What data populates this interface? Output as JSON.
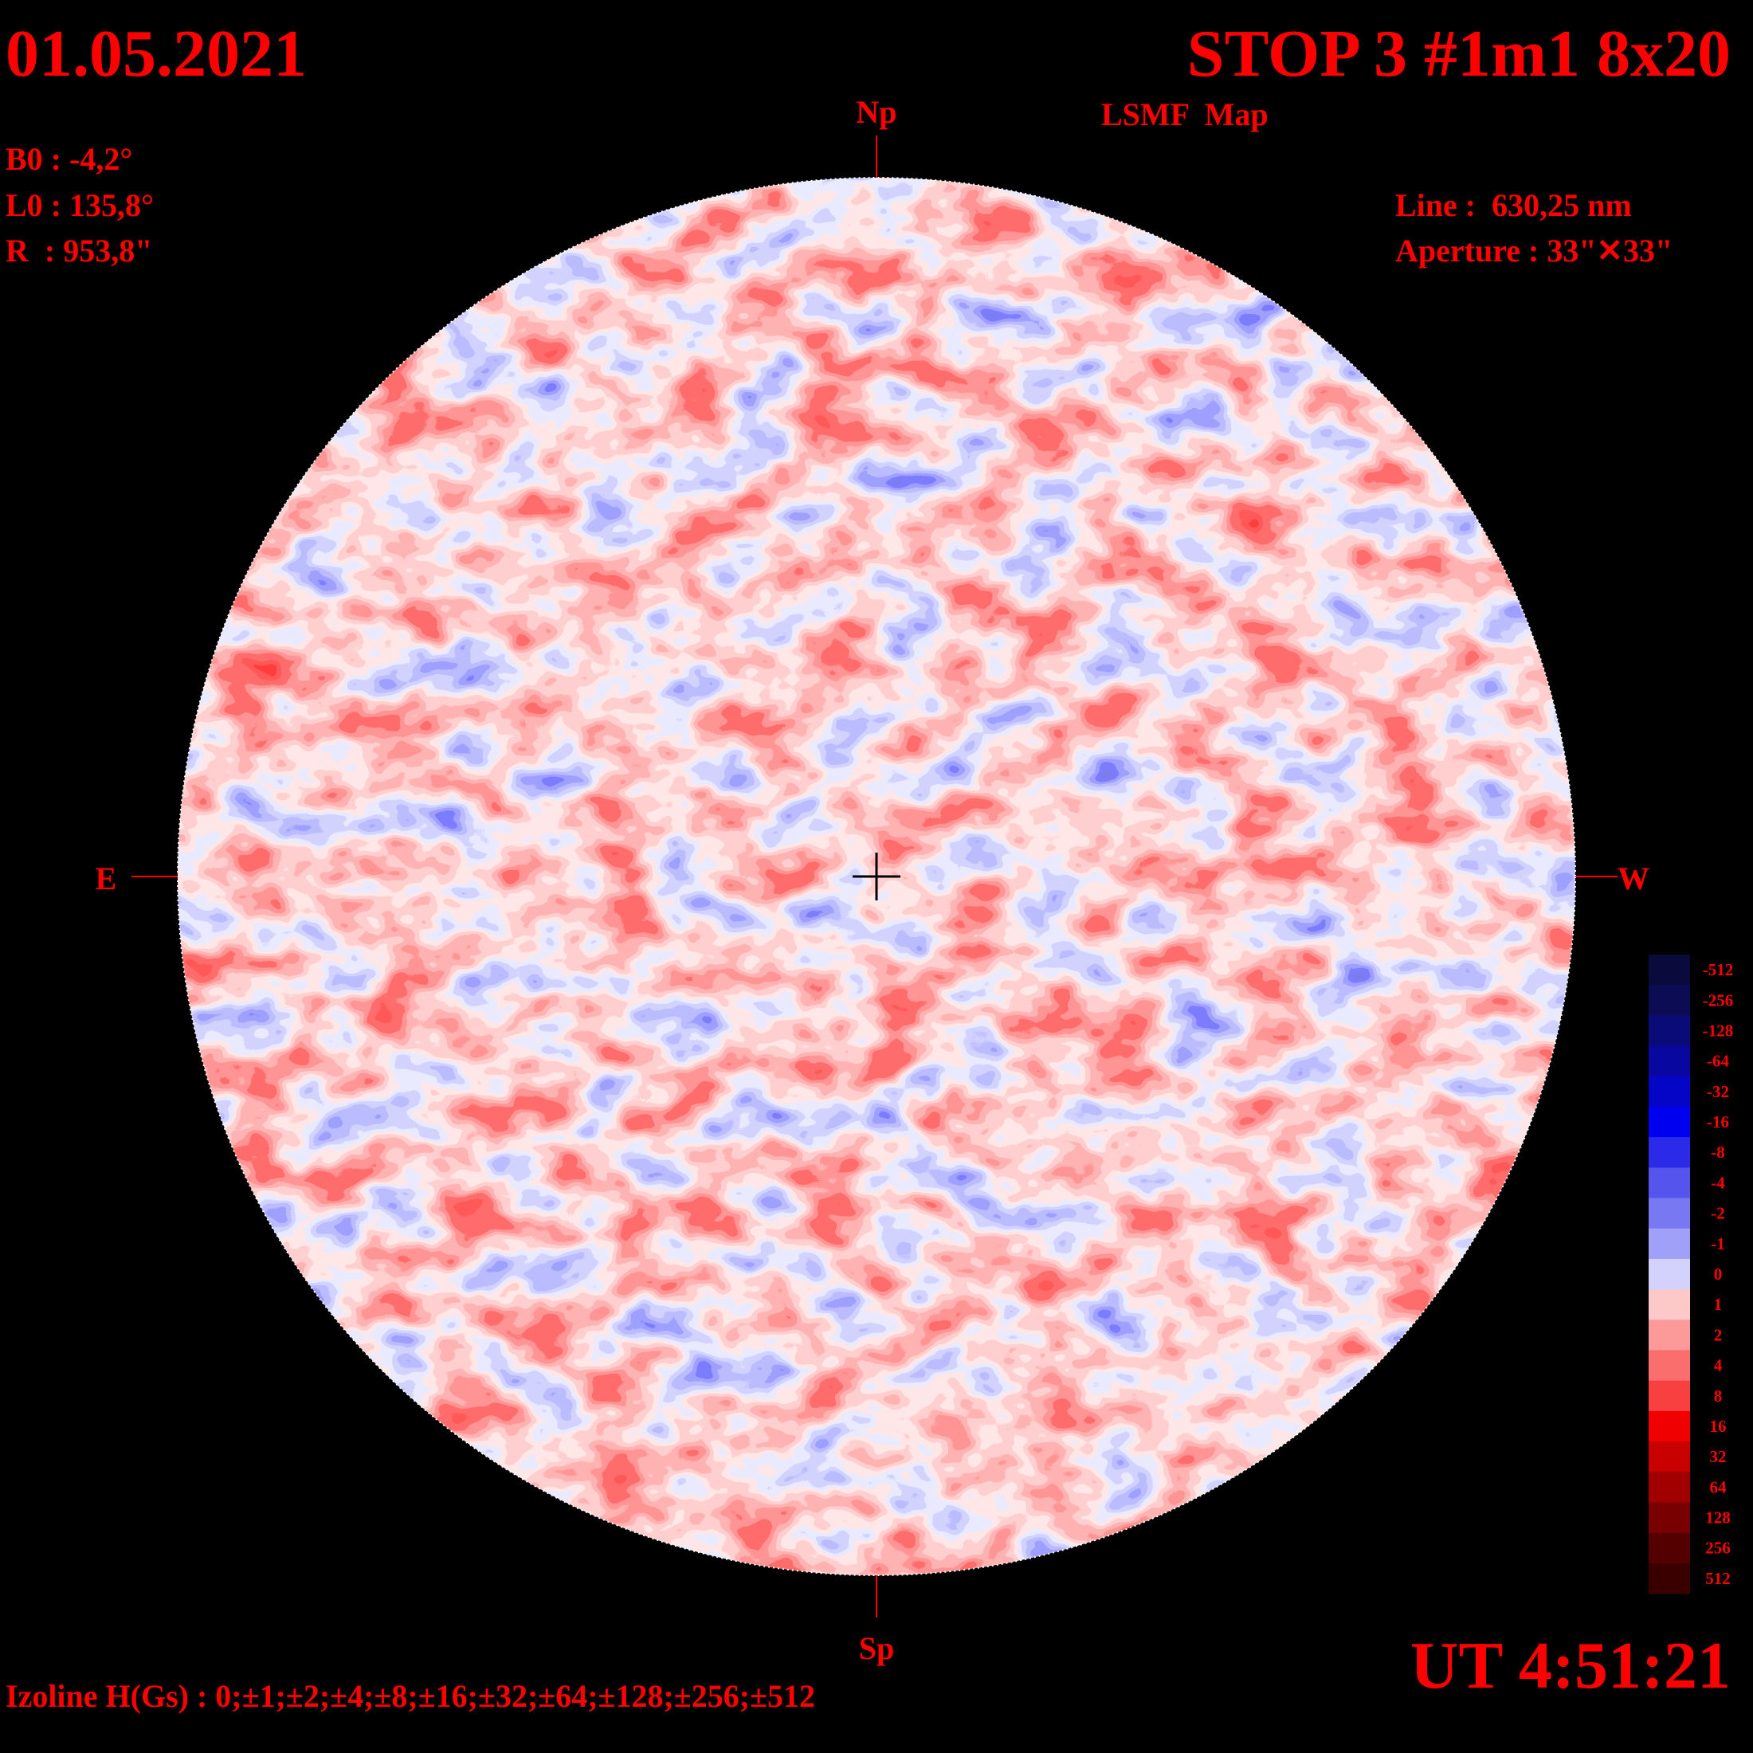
{
  "header": {
    "date": "01.05.2021",
    "title": "STOP 3 #1m1 8x20",
    "subtitle": "LSMF  Map",
    "ut": "UT 4:51:21"
  },
  "params": {
    "b0": "B0 : -4,2°",
    "l0": "L0 : 135,8°",
    "r": "R  : 953,8\"",
    "line": "Line :  630,25 nm",
    "aperture": "Aperture : 33\"✕33\""
  },
  "directions": {
    "north": "Np",
    "south": "Sp",
    "east": "E",
    "west": "W"
  },
  "footer": {
    "izoline": "Izoline H(Gs) : 0;±1;±2;±4;±8;±16;±32;±64;±128;±256;±512"
  },
  "colorbar": {
    "levels": [
      {
        "value": -512,
        "color": "#0a0a3c"
      },
      {
        "value": -256,
        "color": "#0c0c55"
      },
      {
        "value": -128,
        "color": "#0a0a78"
      },
      {
        "value": -64,
        "color": "#0808a0"
      },
      {
        "value": -32,
        "color": "#0505c8"
      },
      {
        "value": -16,
        "color": "#0000f0"
      },
      {
        "value": -8,
        "color": "#2a2ae8"
      },
      {
        "value": -4,
        "color": "#5555ee"
      },
      {
        "value": -2,
        "color": "#7878f2"
      },
      {
        "value": -1,
        "color": "#a0a0f8"
      },
      {
        "value": 0,
        "color": "#d2d2fc"
      },
      {
        "value": 1,
        "color": "#fcc8c8"
      },
      {
        "value": 2,
        "color": "#fc9a9a"
      },
      {
        "value": 4,
        "color": "#fa6e6e"
      },
      {
        "value": 8,
        "color": "#f84040"
      },
      {
        "value": 16,
        "color": "#f00000"
      },
      {
        "value": 32,
        "color": "#c80000"
      },
      {
        "value": 64,
        "color": "#a00000"
      },
      {
        "value": 128,
        "color": "#780000"
      },
      {
        "value": 256,
        "color": "#550000"
      },
      {
        "value": 512,
        "color": "#3a0000"
      }
    ]
  }
}
